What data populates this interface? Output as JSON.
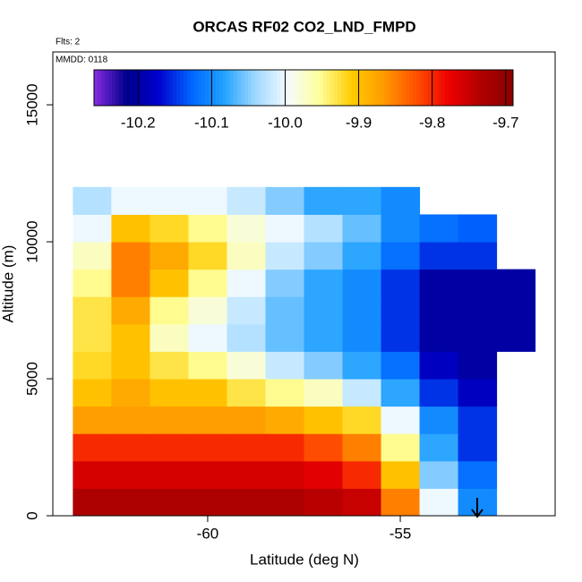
{
  "chart_data": {
    "type": "heatmap",
    "title": "ORCAS RF02 CO2_LND_FMPD",
    "annotations": [
      "Flts: 2",
      "MMDD: 0118"
    ],
    "x_label": "Latitude (deg N)",
    "y_label": "Altitude (m)",
    "xlim": [
      -64.02,
      -50.98
    ],
    "ylim": [
      0,
      16930
    ],
    "xticks": [
      -60,
      -55
    ],
    "yticks": [
      0,
      5000,
      10000,
      15000
    ],
    "x_bins": [
      -63.5,
      -62.5,
      -61.5,
      -60.5,
      -59.5,
      -58.5,
      -57.5,
      -56.5,
      -55.5,
      -54.5,
      -53.5,
      -52.5,
      -51.5
    ],
    "y_bins": [
      0,
      1000,
      2000,
      3000,
      4000,
      5000,
      6000,
      7000,
      8000,
      9000,
      10000,
      11000,
      12000
    ],
    "z": [
      [
        -9.73,
        -9.73,
        -9.73,
        -9.73,
        -9.73,
        -9.73,
        -9.74,
        -9.75,
        -9.85,
        -10.0,
        -10.1,
        null
      ],
      [
        -9.76,
        -9.76,
        -9.76,
        -9.76,
        -9.76,
        -9.76,
        -9.77,
        -9.8,
        -9.9,
        -10.05,
        -10.12,
        null
      ],
      [
        -9.8,
        -9.8,
        -9.8,
        -9.8,
        -9.8,
        -9.8,
        -9.82,
        -9.85,
        -9.95,
        -10.08,
        -10.15,
        null
      ],
      [
        -9.87,
        -9.87,
        -9.87,
        -9.87,
        -9.87,
        -9.88,
        -9.9,
        -9.92,
        -10.0,
        -10.1,
        -10.15,
        null
      ],
      [
        -9.9,
        -9.88,
        -9.9,
        -9.9,
        -9.93,
        -9.95,
        -9.97,
        -10.02,
        -10.08,
        -10.15,
        -10.18,
        null
      ],
      [
        -9.92,
        -9.9,
        -9.93,
        -9.95,
        -9.98,
        -10.02,
        -10.05,
        -10.08,
        -10.12,
        -10.18,
        -10.2,
        null
      ],
      [
        -9.93,
        -9.9,
        -9.97,
        -10.0,
        -10.03,
        -10.06,
        -10.08,
        -10.1,
        -10.15,
        -10.2,
        -10.2,
        -10.2
      ],
      [
        -9.93,
        -9.88,
        -9.95,
        -9.98,
        -10.02,
        -10.06,
        -10.08,
        -10.1,
        -10.15,
        -10.2,
        -10.2,
        -10.2
      ],
      [
        -9.95,
        -9.85,
        -9.9,
        -9.95,
        -10.0,
        -10.05,
        -10.08,
        -10.1,
        -10.15,
        -10.2,
        -10.2,
        -10.2
      ],
      [
        -9.97,
        -9.85,
        -9.88,
        -9.92,
        -9.97,
        -10.02,
        -10.05,
        -10.08,
        -10.12,
        -10.15,
        -10.15,
        null
      ],
      [
        -10.0,
        -9.9,
        -9.92,
        -9.95,
        -9.98,
        -10.0,
        -10.03,
        -10.06,
        -10.1,
        -10.12,
        -10.13,
        null
      ],
      [
        -10.03,
        -10.0,
        -10.0,
        -10.0,
        -10.02,
        -10.05,
        -10.08,
        -10.08,
        -10.1,
        null,
        null,
        null
      ]
    ],
    "clim": [
      -10.26,
      -9.69
    ],
    "colorbar_ticks": [
      -10.2,
      -10.1,
      {
        "value": -10,
        "label": "-10.0"
      },
      -9.9,
      -9.8,
      -9.7
    ],
    "colormap": [
      "#8a2be2",
      "#00008b",
      "#0000cd",
      "#0064ff",
      "#1ea0ff",
      "#9fd8ff",
      "#f4fbff",
      "#ffff99",
      "#ffcc00",
      "#ff9900",
      "#ff5000",
      "#ee0000",
      "#b00000",
      "#8b0000"
    ]
  }
}
